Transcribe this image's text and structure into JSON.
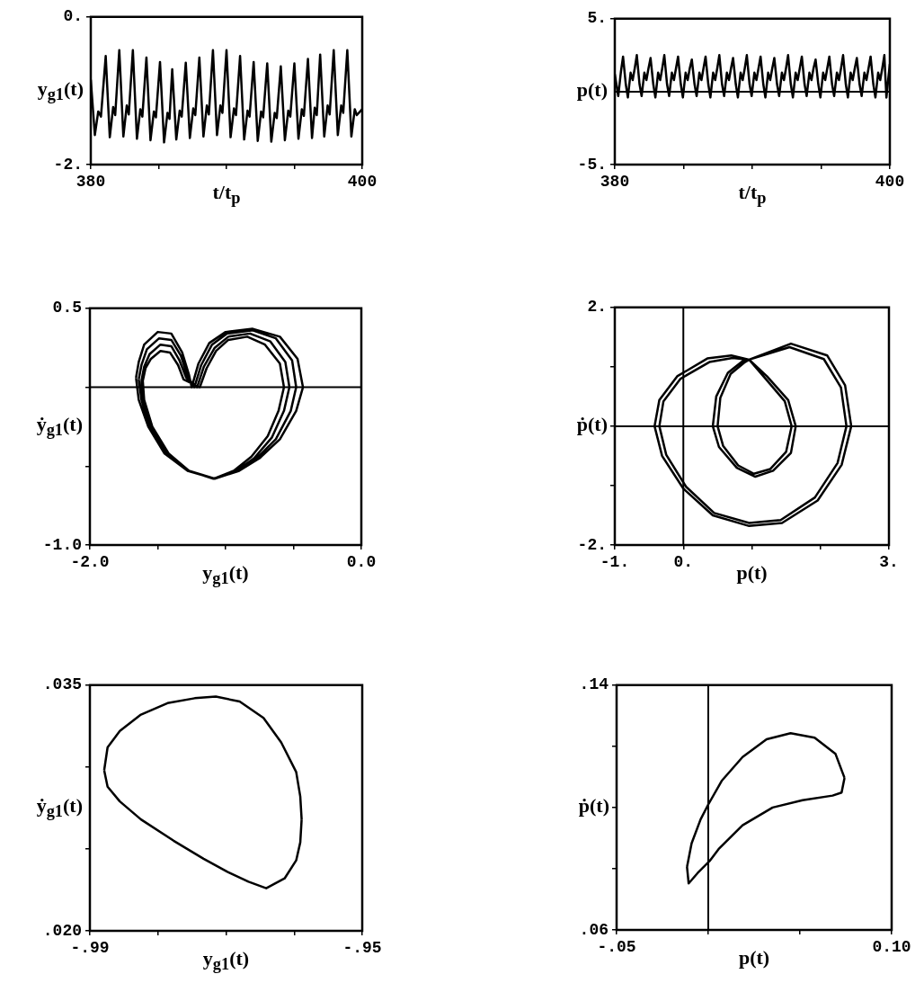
{
  "chart_data": [
    {
      "type": "line",
      "xlabel": "t/t$_{p}$",
      "ylabel": "y$_{g1}$(t)",
      "marker": "none",
      "xlim": [
        380,
        400
      ],
      "ylim": [
        -2,
        0
      ],
      "xticks": [
        {
          "value": 380,
          "label": "380"
        },
        {
          "value": 385,
          "label": null
        },
        {
          "value": 390,
          "label": null
        },
        {
          "value": 395,
          "label": null
        },
        {
          "value": 400,
          "label": "400"
        }
      ],
      "yticks": [
        {
          "value": -2,
          "label": "-2."
        },
        {
          "value": 0,
          "label": "0."
        }
      ],
      "series": [
        {
          "color": "#000000",
          "x": [
            380.0,
            380.3,
            380.55,
            380.75,
            381.1,
            381.4,
            381.65,
            381.8,
            382.1,
            382.4,
            382.65,
            382.8,
            383.1,
            383.4,
            383.65,
            383.8,
            384.1,
            384.4,
            384.65,
            384.8,
            385.1,
            385.4,
            385.65,
            385.8,
            386.0,
            386.3,
            386.55,
            386.7,
            387.0,
            387.3,
            387.55,
            387.7,
            388.0,
            388.3,
            388.55,
            388.7,
            389.0,
            389.3,
            389.55,
            389.7,
            390.0,
            390.3,
            390.55,
            390.7,
            391.0,
            391.3,
            391.55,
            391.7,
            392.0,
            392.3,
            392.55,
            392.7,
            393.0,
            393.3,
            393.55,
            393.7,
            394.0,
            394.3,
            394.55,
            394.7,
            395.0,
            395.3,
            395.55,
            395.7,
            396.0,
            396.3,
            396.5,
            396.65,
            396.9,
            397.2,
            397.45,
            397.6,
            397.9,
            398.2,
            398.45,
            398.6,
            398.9,
            399.2,
            399.45,
            399.6,
            400.0
          ],
          "values": [
            -0.85,
            -1.6,
            -1.28,
            -1.35,
            -0.53,
            -1.63,
            -1.22,
            -1.33,
            -0.45,
            -1.62,
            -1.2,
            -1.32,
            -0.45,
            -1.65,
            -1.25,
            -1.35,
            -0.55,
            -1.67,
            -1.28,
            -1.36,
            -0.61,
            -1.7,
            -1.3,
            -1.38,
            -0.71,
            -1.66,
            -1.27,
            -1.35,
            -0.62,
            -1.64,
            -1.24,
            -1.33,
            -0.55,
            -1.62,
            -1.2,
            -1.32,
            -0.45,
            -1.6,
            -1.2,
            -1.3,
            -0.45,
            -1.63,
            -1.24,
            -1.33,
            -0.53,
            -1.66,
            -1.27,
            -1.35,
            -0.61,
            -1.68,
            -1.28,
            -1.36,
            -0.63,
            -1.69,
            -1.3,
            -1.37,
            -0.67,
            -1.67,
            -1.27,
            -1.35,
            -0.63,
            -1.65,
            -1.25,
            -1.34,
            -0.57,
            -1.64,
            -1.23,
            -1.33,
            -0.51,
            -1.62,
            -1.2,
            -1.32,
            -0.45,
            -1.6,
            -1.2,
            -1.3,
            -0.45,
            -1.62,
            -1.25,
            -1.33,
            -1.25
          ]
        }
      ]
    },
    {
      "type": "line",
      "xlabel": "t/t$_{p}$",
      "ylabel": "p(t)",
      "marker": "none",
      "xlim": [
        380,
        400
      ],
      "ylim": [
        -5,
        5
      ],
      "xticks": [
        {
          "value": 380,
          "label": "380"
        },
        {
          "value": 385,
          "label": null
        },
        {
          "value": 390,
          "label": null
        },
        {
          "value": 395,
          "label": null
        },
        {
          "value": 400,
          "label": "400"
        }
      ],
      "yticks": [
        {
          "value": -5,
          "label": "-5."
        },
        {
          "value": 5,
          "label": "5."
        }
      ],
      "ref_lines": [
        {
          "axis": "y",
          "value": 0,
          "color": "#000000"
        }
      ],
      "series": [
        {
          "color": "#000000",
          "x": [
            380.0,
            380.25,
            380.45,
            380.6,
            380.8,
            380.95,
            381.15,
            381.3,
            381.45,
            381.6,
            381.8,
            381.95,
            382.15,
            382.3,
            382.45,
            382.6,
            382.8,
            382.95,
            383.15,
            383.3,
            383.45,
            383.6,
            383.8,
            383.95,
            384.15,
            384.3,
            384.45,
            384.6,
            384.8,
            384.95,
            385.15,
            385.3,
            385.45,
            385.6,
            385.8,
            385.95,
            386.15,
            386.3,
            386.45,
            386.6,
            386.8,
            386.95,
            387.15,
            387.3,
            387.45,
            387.6,
            387.8,
            387.95,
            388.15,
            388.3,
            388.45,
            388.6,
            388.8,
            388.95,
            389.15,
            389.3,
            389.45,
            389.6,
            389.8,
            389.95,
            390.15,
            390.3,
            390.45,
            390.6,
            390.8,
            390.95,
            391.15,
            391.3,
            391.45,
            391.6,
            391.8,
            391.95,
            392.15,
            392.3,
            392.45,
            392.6,
            392.8,
            392.95,
            393.15,
            393.3,
            393.45,
            393.6,
            393.8,
            393.95,
            394.15,
            394.3,
            394.45,
            394.6,
            394.8,
            394.95,
            395.15,
            395.3,
            395.45,
            395.6,
            395.8,
            395.95,
            396.15,
            396.3,
            396.45,
            396.6,
            396.8,
            396.95,
            397.15,
            397.3,
            397.45,
            397.6,
            397.8,
            397.95,
            398.15,
            398.3,
            398.45,
            398.6,
            398.8,
            398.95,
            399.15,
            399.3,
            399.45,
            399.6,
            399.75,
            399.9,
            400.0
          ],
          "values": [
            1.2,
            -0.3,
            1.4,
            2.4,
            0.5,
            -0.4,
            1.3,
            0.8,
            1.6,
            2.5,
            0.5,
            -0.3,
            1.3,
            0.8,
            1.6,
            2.3,
            0.5,
            -0.4,
            1.3,
            0.8,
            1.6,
            2.5,
            0.5,
            -0.3,
            1.3,
            0.8,
            1.6,
            2.4,
            0.5,
            -0.4,
            1.3,
            0.8,
            1.6,
            2.2,
            0.5,
            -0.3,
            1.3,
            0.8,
            1.6,
            2.4,
            0.5,
            -0.4,
            1.3,
            0.8,
            1.6,
            2.5,
            0.5,
            -0.3,
            1.3,
            0.8,
            1.6,
            2.3,
            0.5,
            -0.4,
            1.3,
            0.8,
            1.6,
            2.5,
            0.5,
            -0.3,
            1.3,
            0.8,
            1.6,
            2.4,
            0.5,
            -0.4,
            1.3,
            0.8,
            1.6,
            2.3,
            0.5,
            -0.3,
            1.3,
            0.8,
            1.6,
            2.5,
            0.5,
            -0.4,
            1.3,
            0.8,
            1.6,
            2.4,
            0.5,
            -0.3,
            1.3,
            0.8,
            1.6,
            2.2,
            0.5,
            -0.4,
            1.3,
            0.8,
            1.6,
            2.4,
            0.5,
            -0.3,
            1.3,
            0.8,
            1.6,
            2.5,
            0.5,
            -0.4,
            1.3,
            0.8,
            1.6,
            2.3,
            0.5,
            -0.3,
            1.3,
            0.8,
            1.6,
            2.4,
            0.5,
            -0.4,
            1.3,
            0.8,
            1.6,
            2.5,
            -0.4,
            1.0,
            1.9
          ]
        }
      ]
    },
    {
      "type": "line",
      "xlabel": "y$_{g1}$(t)",
      "ylabel": "ẏ$_{g1}$(t)",
      "marker": "none",
      "xlim": [
        -2,
        0
      ],
      "ylim": [
        -1,
        0.5
      ],
      "xticks": [
        {
          "value": -2,
          "label": "-2.0"
        },
        {
          "value": -1.5,
          "label": null
        },
        {
          "value": -1,
          "label": null
        },
        {
          "value": -0.5,
          "label": null
        },
        {
          "value": 0,
          "label": "0.0"
        }
      ],
      "yticks": [
        {
          "value": -1,
          "label": "-1.0"
        },
        {
          "value": -0.5,
          "label": null
        },
        {
          "value": 0,
          "label": null
        },
        {
          "value": 0.5,
          "label": "0.5"
        }
      ],
      "ref_lines": [
        {
          "axis": "y",
          "value": 0,
          "color": "#000000"
        }
      ],
      "series": [
        {
          "color": "#000000",
          "x": [
            -1.66,
            -1.64,
            -1.6,
            -1.5,
            -1.4,
            -1.32,
            -1.27,
            -1.25,
            -1.2,
            -1.12,
            -1.0,
            -0.8,
            -0.6,
            -0.47,
            -0.43,
            null,
            -1.66,
            -1.64,
            -1.57,
            -1.45,
            -1.28,
            -1.08,
            -0.9,
            -0.75,
            -0.6,
            -0.48,
            -0.43,
            null,
            -1.64,
            -1.62,
            -1.58,
            -1.49,
            -1.4,
            -1.33,
            -1.28,
            -1.23,
            -1.18,
            -1.1,
            -0.99,
            -0.8,
            -0.63,
            -0.51,
            -0.48,
            null,
            -1.64,
            -1.62,
            -1.56,
            -1.44,
            -1.28,
            -1.08,
            -0.91,
            -0.77,
            -0.63,
            -0.52,
            -0.48,
            null,
            -1.62,
            -1.6,
            -1.56,
            -1.48,
            -1.4,
            -1.34,
            -1.29,
            -1.21,
            -1.16,
            -1.08,
            -0.98,
            -0.82,
            -0.67,
            -0.56,
            -0.53,
            null,
            -1.62,
            -1.61,
            -1.55,
            -1.43,
            -1.27,
            -1.08,
            -0.92,
            -0.79,
            -0.66,
            -0.57,
            -0.53,
            null,
            -1.61,
            -1.59,
            -1.55,
            -1.48,
            -1.41,
            -1.35,
            -1.31,
            -1.19,
            -1.14,
            -1.07,
            -0.98,
            -0.84,
            -0.71,
            -0.6,
            -0.57,
            null,
            -1.61,
            -1.6,
            -1.54,
            -1.42,
            -1.27,
            -1.09,
            -0.94,
            -0.81,
            -0.69,
            -0.61,
            -0.57
          ],
          "values": [
            0.06,
            0.16,
            0.27,
            0.35,
            0.34,
            0.22,
            0.08,
            0.0,
            0.15,
            0.28,
            0.35,
            0.37,
            0.32,
            0.18,
            0.0,
            null,
            0.06,
            -0.08,
            -0.25,
            -0.42,
            -0.53,
            -0.58,
            -0.53,
            -0.45,
            -0.33,
            -0.15,
            0.0,
            null,
            0.05,
            0.14,
            0.24,
            0.31,
            0.3,
            0.2,
            0.07,
            0.0,
            0.14,
            0.27,
            0.34,
            0.36,
            0.31,
            0.17,
            0.0,
            null,
            0.05,
            -0.08,
            -0.25,
            -0.42,
            -0.53,
            -0.58,
            -0.53,
            -0.45,
            -0.33,
            -0.15,
            0.0,
            null,
            0.04,
            0.13,
            0.21,
            0.27,
            0.26,
            0.17,
            0.06,
            0.0,
            0.13,
            0.25,
            0.32,
            0.34,
            0.29,
            0.16,
            0.0,
            null,
            0.04,
            -0.08,
            -0.25,
            -0.42,
            -0.53,
            -0.58,
            -0.53,
            -0.45,
            -0.32,
            -0.15,
            0.0,
            null,
            0.04,
            0.12,
            0.18,
            0.23,
            0.22,
            0.14,
            0.05,
            0.0,
            0.12,
            0.23,
            0.3,
            0.32,
            0.27,
            0.15,
            0.0,
            null,
            0.04,
            -0.08,
            -0.25,
            -0.42,
            -0.53,
            -0.58,
            -0.53,
            -0.44,
            -0.31,
            -0.15,
            0.0
          ]
        }
      ]
    },
    {
      "type": "line",
      "xlabel": "p(t)",
      "ylabel": "ṗ(t)",
      "marker": "none",
      "xlim": [
        -1,
        3
      ],
      "ylim": [
        -2,
        2
      ],
      "xticks": [
        {
          "value": -1,
          "label": "-1."
        },
        {
          "value": 0,
          "label": "0."
        },
        {
          "value": 1,
          "label": null
        },
        {
          "value": 2,
          "label": null
        },
        {
          "value": 3,
          "label": "3."
        }
      ],
      "yticks": [
        {
          "value": -2,
          "label": "-2."
        },
        {
          "value": -1,
          "label": null
        },
        {
          "value": 0,
          "label": null
        },
        {
          "value": 1,
          "label": null
        },
        {
          "value": 2,
          "label": "2."
        }
      ],
      "ref_lines": [
        {
          "axis": "x",
          "value": 0,
          "color": "#000000"
        },
        {
          "axis": "y",
          "value": 0,
          "color": "#000000"
        }
      ],
      "series": [
        {
          "color": "#000000",
          "x": [
            -0.42,
            -0.35,
            -0.09,
            0.35,
            0.7,
            0.96,
            1.57,
            2.1,
            2.36,
            2.45,
            null,
            -0.42,
            -0.31,
            0.0,
            0.43,
            0.96,
            1.44,
            1.96,
            2.31,
            2.45,
            null,
            0.43,
            0.48,
            0.65,
            0.87,
            0.96,
            1.22,
            1.53,
            1.64,
            null,
            0.43,
            0.52,
            0.78,
            1.05,
            1.31,
            1.57,
            1.64,
            null,
            -0.35,
            -0.29,
            -0.04,
            0.38,
            0.72,
            0.96,
            1.55,
            2.05,
            2.3,
            2.38,
            null,
            -0.35,
            -0.25,
            0.04,
            0.45,
            0.96,
            1.42,
            1.92,
            2.25,
            2.38,
            null,
            0.5,
            0.54,
            0.69,
            0.9,
            0.96,
            1.2,
            1.48,
            1.58,
            null,
            0.5,
            0.58,
            0.8,
            1.03,
            1.27,
            1.5,
            1.58
          ],
          "values": [
            0.0,
            0.44,
            0.84,
            1.14,
            1.19,
            1.12,
            1.39,
            1.19,
            0.69,
            0.0,
            null,
            0.0,
            -0.5,
            -1.05,
            -1.5,
            -1.68,
            -1.63,
            -1.25,
            -0.65,
            0.0,
            null,
            0.0,
            0.5,
            0.9,
            1.1,
            1.12,
            0.84,
            0.44,
            0.0,
            null,
            0.0,
            -0.35,
            -0.7,
            -0.85,
            -0.75,
            -0.45,
            0.0,
            null,
            0.0,
            0.42,
            0.8,
            1.08,
            1.15,
            1.12,
            1.33,
            1.13,
            0.65,
            0.0,
            null,
            0.0,
            -0.48,
            -1.02,
            -1.46,
            -1.63,
            -1.58,
            -1.2,
            -0.62,
            0.0,
            null,
            0.0,
            0.48,
            0.88,
            1.08,
            1.12,
            0.8,
            0.42,
            0.0,
            null,
            0.0,
            -0.33,
            -0.66,
            -0.8,
            -0.72,
            -0.43,
            0.0
          ]
        }
      ]
    },
    {
      "type": "line",
      "xlabel": "y$_{g1}$(t)",
      "ylabel": "ẏ$_{g1}$(t)",
      "marker": "none",
      "xlim": [
        -0.99,
        -0.95
      ],
      "ylim": [
        0.02,
        0.035
      ],
      "xticks": [
        {
          "value": -0.99,
          "label": "-.99"
        },
        {
          "value": -0.98,
          "label": null
        },
        {
          "value": -0.97,
          "label": null
        },
        {
          "value": -0.96,
          "label": null
        },
        {
          "value": -0.95,
          "label": "-.95"
        }
      ],
      "yticks": [
        {
          "value": 0.02,
          "label": ".020"
        },
        {
          "value": 0.025,
          "label": null
        },
        {
          "value": 0.03,
          "label": null
        },
        {
          "value": 0.035,
          "label": ".035"
        }
      ],
      "series": [
        {
          "color": "#000000",
          "x": [
            -0.9879,
            -0.9874,
            -0.9856,
            -0.9825,
            -0.9786,
            -0.9746,
            -0.9715,
            -0.968,
            -0.9645,
            -0.9619,
            -0.9597,
            -0.9591,
            -0.9589,
            null,
            -0.9879,
            -0.9874,
            -0.9856,
            -0.9825,
            -0.9777,
            -0.9733,
            -0.9698,
            -0.9667,
            -0.9641,
            -0.9614,
            -0.9597,
            -0.9591,
            -0.9589
          ],
          "values": [
            0.0298,
            0.0312,
            0.0322,
            0.0332,
            0.0339,
            0.0342,
            0.0343,
            0.034,
            0.033,
            0.0315,
            0.0297,
            0.0282,
            0.0268,
            null,
            0.0298,
            0.0288,
            0.0279,
            0.0268,
            0.0255,
            0.0244,
            0.0236,
            0.023,
            0.0226,
            0.0232,
            0.0243,
            0.0254,
            0.0268
          ]
        }
      ]
    },
    {
      "type": "line",
      "xlabel": "p(t)",
      "ylabel": "ṗ(t)",
      "marker": "none",
      "xlim": [
        -0.05,
        0.1
      ],
      "ylim": [
        0.06,
        0.14
      ],
      "xticks": [
        {
          "value": -0.05,
          "label": "-.05"
        },
        {
          "value": 0,
          "label": null
        },
        {
          "value": 0.05,
          "label": null
        },
        {
          "value": 0.1,
          "label": "0.10"
        }
      ],
      "yticks": [
        {
          "value": 0.06,
          "label": ".06"
        },
        {
          "value": 0.08,
          "label": null
        },
        {
          "value": 0.1,
          "label": null
        },
        {
          "value": 0.12,
          "label": null
        },
        {
          "value": 0.14,
          "label": ".14"
        }
      ],
      "ref_lines": [
        {
          "axis": "x",
          "value": 0,
          "color": "#000000"
        }
      ],
      "series": [
        {
          "color": "#000000",
          "x": [
            -0.0116,
            -0.0091,
            -0.0042,
            0.0,
            0.0073,
            0.0187,
            0.0318,
            0.0449,
            0.058,
            0.0694,
            0.0743,
            null,
            -0.0116,
            -0.0107,
            -0.0058,
            0.0007,
            0.0056,
            0.0187,
            0.0351,
            0.0514,
            0.0678,
            0.0727,
            0.0743
          ],
          "values": [
            0.0806,
            0.0883,
            0.0961,
            0.101,
            0.1087,
            0.1165,
            0.1223,
            0.1243,
            0.1228,
            0.1175,
            0.1097,
            null,
            0.0806,
            0.0752,
            0.0786,
            0.0825,
            0.0864,
            0.0942,
            0.1,
            0.1024,
            0.1039,
            0.1049,
            0.1097
          ]
        }
      ]
    }
  ]
}
